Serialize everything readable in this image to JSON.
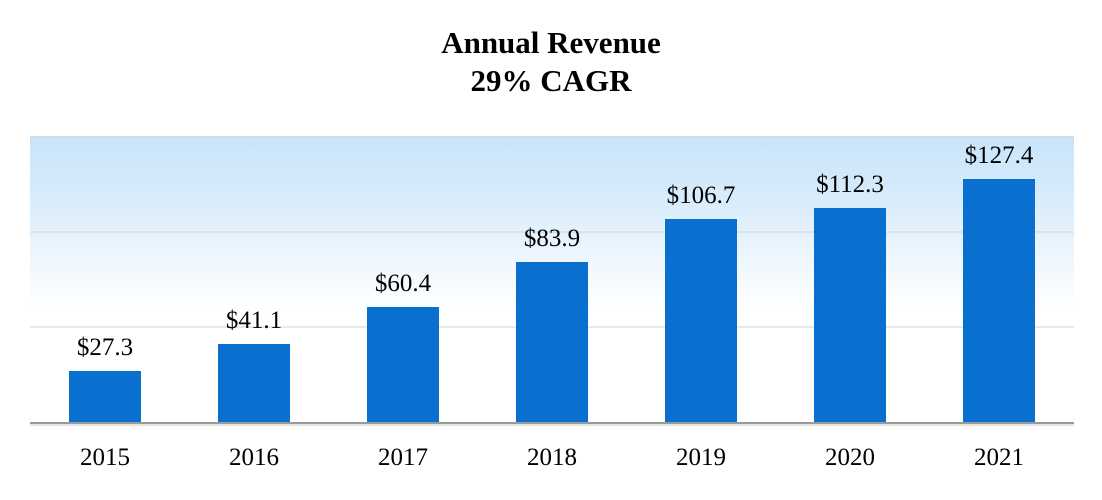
{
  "chart_data": {
    "type": "bar",
    "title": "Annual Revenue",
    "subtitle": "29% CAGR",
    "categories": [
      "2015",
      "2016",
      "2017",
      "2018",
      "2019",
      "2020",
      "2021"
    ],
    "values": [
      27.3,
      41.1,
      60.4,
      83.9,
      106.7,
      112.3,
      127.4
    ],
    "value_labels": [
      "$27.3",
      "$41.1",
      "$60.4",
      "$83.9",
      "$106.7",
      "$112.3",
      "$127.4"
    ],
    "xlabel": "",
    "ylabel": "",
    "ylim": [
      0,
      150
    ],
    "gridline_values": [
      50,
      100,
      150
    ],
    "grid": true,
    "legend_position": "none",
    "bar_color": "#0a70cf",
    "plot_bg_top_color": "#c8e4fa",
    "plot_bg_bottom_color": "#ffffff",
    "gridline_color": "#d2d5d8",
    "axis_line_color": "#9a9a9a",
    "text_color": "#000000"
  }
}
